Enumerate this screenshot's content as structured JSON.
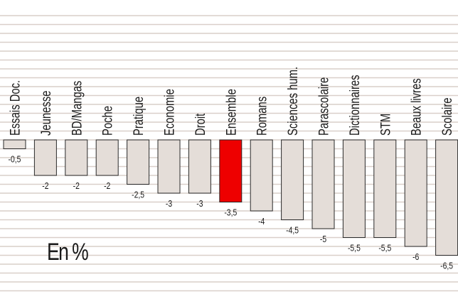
{
  "chart_data": {
    "type": "bar",
    "unit_label": "En %",
    "categories": [
      "Essais Doc.",
      "Jeunesse",
      "BD/Mangas",
      "Poche",
      "Pratique",
      "Economie",
      "Droit",
      "Ensemble",
      "Romans",
      "Sciences hum.",
      "Parascolaire",
      "Dictionnaires",
      "STM",
      "Beaux livres",
      "Scolaire"
    ],
    "values": [
      -0.5,
      -2,
      -2,
      -2,
      -2.5,
      -3,
      -3,
      -3.5,
      -4,
      -4.5,
      -5,
      -5.5,
      -5.5,
      -6,
      -6.5
    ],
    "value_labels": [
      "-0,5",
      "-2",
      "-2",
      "-2",
      "-2,5",
      "-3",
      "-3",
      "-3,5",
      "-4",
      "-4,5",
      "-5",
      "-5,5",
      "-5,5",
      "-6",
      "-6,5"
    ],
    "highlight": "Ensemble",
    "ylim": [
      -7,
      0
    ],
    "grid": true,
    "colors": {
      "bar": "#e4ddd8",
      "bar_stroke": "#2a2a2a",
      "highlight": "#ee0000",
      "grid": "#d9cfc9",
      "text": "#1a1a1a"
    }
  }
}
